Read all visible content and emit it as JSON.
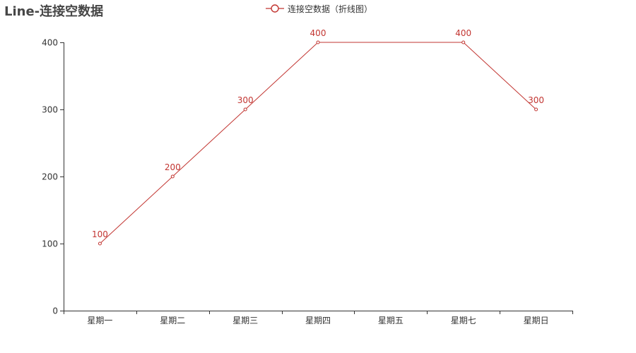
{
  "title": "Line-连接空数据",
  "legend": {
    "items": [
      "连接空数据（折线图）"
    ]
  },
  "colors": {
    "series": "#c23531",
    "axis": "#333333",
    "title": "#464646"
  },
  "chart_data": {
    "type": "line",
    "title": "Line-连接空数据",
    "categories": [
      "星期一",
      "星期二",
      "星期三",
      "星期四",
      "星期五",
      "星期七",
      "星期日"
    ],
    "series": [
      {
        "name": "连接空数据（折线图）",
        "values": [
          100,
          200,
          300,
          400,
          null,
          400,
          300
        ],
        "connect_nulls": true,
        "show_labels": true,
        "symbol": "empty-circle"
      }
    ],
    "ylim": [
      0,
      400
    ],
    "yticks": [
      0,
      100,
      200,
      300,
      400
    ],
    "xlabel": "",
    "ylabel": "",
    "grid": false,
    "legend_position": "top-center"
  }
}
